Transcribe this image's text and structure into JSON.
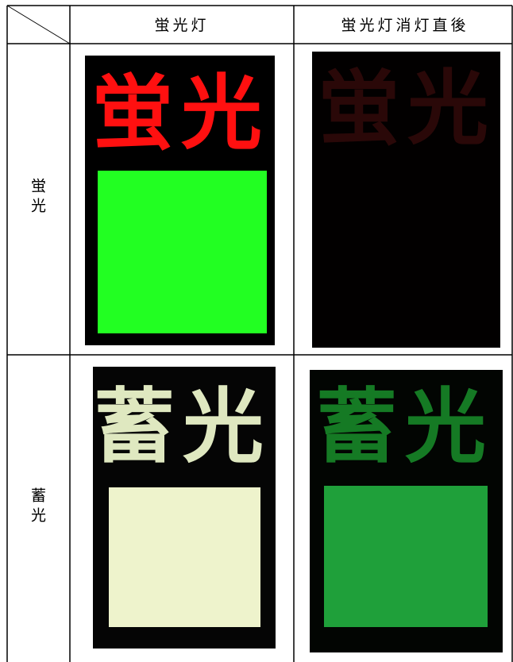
{
  "header": {
    "columns": [
      "蛍光灯",
      "蛍光灯消灯直後"
    ]
  },
  "table": {
    "rows": [
      {
        "label": "蛍光",
        "cells": [
          "蛍光",
          "蛍光"
        ]
      },
      {
        "label": "蓄光",
        "cells": [
          "蓄光",
          "蓄光"
        ]
      }
    ]
  }
}
